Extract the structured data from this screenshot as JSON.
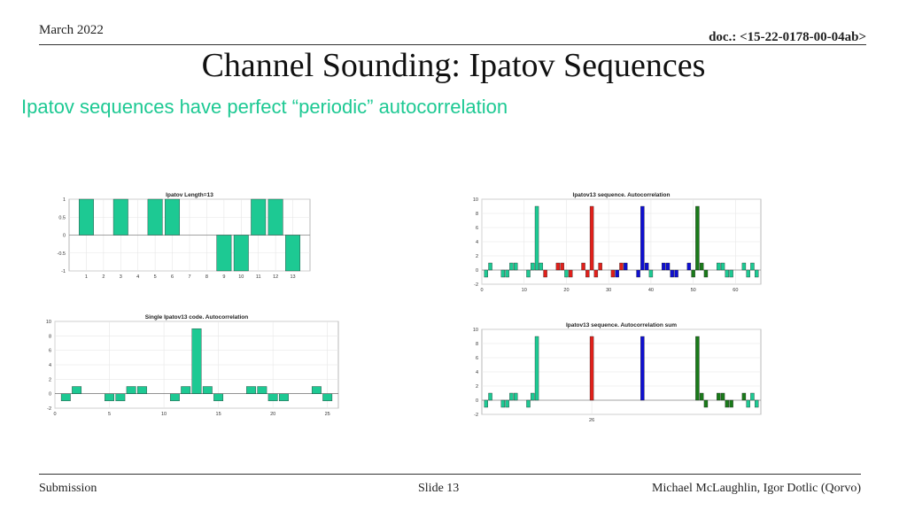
{
  "header": {
    "date": "March 2022",
    "doc": "doc.: <15-22-0178-00-04ab>"
  },
  "slide": {
    "title": "Channel Sounding: Ipatov Sequences",
    "subtitle": "Ipatov sequences have perfect “periodic” autocorrelation"
  },
  "footer": {
    "left": "Submission",
    "center": "Slide 13",
    "right": "Michael McLaughlin, Igor Dotlic (Qorvo)"
  },
  "colors": {
    "teal": "#1dc993",
    "red": "#e0201b",
    "blue": "#1010d0",
    "green": "#1a7a1a",
    "title": "#1dc993"
  },
  "chart_data": [
    {
      "id": "seq",
      "type": "bar",
      "title": "Ipatov Length=13",
      "x": [
        1,
        2,
        3,
        4,
        5,
        6,
        7,
        8,
        9,
        10,
        11,
        12,
        13
      ],
      "values": [
        1,
        0,
        1,
        0,
        1,
        1,
        0,
        0,
        -1,
        -1,
        1,
        1,
        -1
      ],
      "xlim": [
        0,
        14
      ],
      "ylim": [
        -1,
        1
      ],
      "xticks": [
        1,
        2,
        3,
        4,
        5,
        6,
        7,
        8,
        9,
        10,
        11,
        12,
        13
      ],
      "yticks": [
        -1,
        -0.5,
        0,
        0.5,
        1
      ],
      "ytick_labels": [
        "-1",
        "-0.5",
        "0",
        "0.5",
        "1"
      ],
      "grid": true
    },
    {
      "id": "single",
      "type": "bar",
      "title": "Single Ipatov13 code. Autocorrelation",
      "x": [
        1,
        2,
        3,
        4,
        5,
        6,
        7,
        8,
        9,
        10,
        11,
        12,
        13,
        14,
        15,
        16,
        17,
        18,
        19,
        20,
        21,
        22,
        23,
        24,
        25
      ],
      "values": [
        -1,
        1,
        0,
        0,
        -1,
        -1,
        1,
        1,
        0,
        0,
        -1,
        1,
        9,
        1,
        -1,
        0,
        0,
        1,
        1,
        -1,
        -1,
        0,
        0,
        1,
        -1
      ],
      "xlim": [
        0,
        26
      ],
      "ylim": [
        -2,
        10
      ],
      "xticks": [
        0,
        5,
        10,
        15,
        20,
        25
      ],
      "yticks": [
        -2,
        0,
        2,
        4,
        6,
        8,
        10
      ],
      "grid": true
    },
    {
      "id": "acorr",
      "type": "bar",
      "title": "Ipatov13 sequence. Autocorrelation",
      "x": [
        1,
        2,
        3,
        4,
        5,
        6,
        7,
        8,
        9,
        10,
        11,
        12,
        13,
        14,
        15,
        16,
        17,
        18,
        19,
        20,
        21,
        22,
        23,
        24,
        25,
        26,
        27,
        28,
        29,
        30,
        31,
        32,
        33,
        34,
        35,
        36,
        37,
        38,
        39,
        40,
        41,
        42,
        43,
        44,
        45,
        46,
        47,
        48,
        49,
        50,
        51,
        52,
        53,
        54,
        55,
        56,
        57,
        58,
        59,
        60,
        61,
        62,
        63,
        64,
        65
      ],
      "values": [
        -1,
        1,
        0,
        0,
        -1,
        -1,
        1,
        1,
        0,
        0,
        -1,
        1,
        9,
        1,
        -1,
        0,
        0,
        1,
        1,
        -1,
        -1,
        0,
        0,
        1,
        -1,
        9,
        -1,
        1,
        0,
        0,
        -1,
        -1,
        1,
        1,
        0,
        0,
        -1,
        9,
        1,
        -1,
        0,
        0,
        1,
        1,
        -1,
        -1,
        0,
        0,
        1,
        -1,
        9,
        1,
        -1,
        0,
        0,
        1,
        1,
        -1,
        -1,
        0,
        0,
        1,
        -1,
        1,
        -1
      ],
      "colors": [
        "teal",
        "teal",
        "teal",
        "teal",
        "teal",
        "teal",
        "teal",
        "teal",
        "teal",
        "teal",
        "teal",
        "teal",
        "teal",
        "teal",
        "red",
        "teal",
        "teal",
        "red",
        "red",
        "teal",
        "red",
        "teal",
        "teal",
        "red",
        "red",
        "red",
        "red",
        "red",
        "teal",
        "teal",
        "red",
        "blue",
        "red",
        "blue",
        "teal",
        "teal",
        "blue",
        "blue",
        "blue",
        "teal",
        "teal",
        "blue",
        "blue",
        "blue",
        "blue",
        "blue",
        "green",
        "green",
        "blue",
        "green",
        "green",
        "green",
        "green",
        "teal",
        "teal",
        "teal",
        "teal",
        "teal",
        "teal",
        "teal",
        "teal",
        "teal",
        "teal",
        "teal",
        "teal"
      ],
      "xlim": [
        0,
        66
      ],
      "ylim": [
        -2,
        10
      ],
      "xticks": [
        0,
        10,
        20,
        30,
        40,
        50,
        60
      ],
      "yticks": [
        -2,
        0,
        2,
        4,
        6,
        8,
        10
      ],
      "grid": true
    },
    {
      "id": "sum",
      "type": "bar",
      "title": "Ipatov13 sequence. Autocorrelation sum",
      "x": [
        1,
        2,
        3,
        4,
        5,
        6,
        7,
        8,
        9,
        10,
        11,
        12,
        13,
        14,
        15,
        16,
        17,
        18,
        19,
        20,
        21,
        22,
        23,
        24,
        25,
        26,
        27,
        28,
        29,
        30,
        31,
        32,
        33,
        34,
        35,
        36,
        37,
        38,
        39,
        40,
        41,
        42,
        43,
        44,
        45,
        46,
        47,
        48,
        49,
        50,
        51,
        52,
        53,
        54,
        55,
        56,
        57,
        58,
        59,
        60,
        61,
        62,
        63,
        64,
        65
      ],
      "values": [
        -1,
        1,
        0,
        0,
        -1,
        -1,
        1,
        1,
        0,
        0,
        -1,
        1,
        9,
        0,
        0,
        0,
        0,
        0,
        0,
        0,
        0,
        0,
        0,
        0,
        0,
        9,
        0,
        0,
        0,
        0,
        0,
        0,
        0,
        0,
        0,
        0,
        0,
        9,
        0,
        0,
        0,
        0,
        0,
        0,
        0,
        0,
        0,
        0,
        0,
        0,
        9,
        1,
        -1,
        0,
        0,
        1,
        1,
        -1,
        -1,
        0,
        0,
        1,
        -1,
        1,
        -1
      ],
      "colors": [
        "teal",
        "teal",
        "teal",
        "teal",
        "teal",
        "teal",
        "teal",
        "teal",
        "teal",
        "teal",
        "teal",
        "teal",
        "teal",
        "teal",
        "teal",
        "teal",
        "teal",
        "teal",
        "teal",
        "teal",
        "teal",
        "teal",
        "teal",
        "teal",
        "teal",
        "red",
        "teal",
        "teal",
        "teal",
        "teal",
        "teal",
        "teal",
        "teal",
        "teal",
        "teal",
        "teal",
        "teal",
        "blue",
        "teal",
        "teal",
        "teal",
        "teal",
        "teal",
        "teal",
        "teal",
        "teal",
        "teal",
        "teal",
        "teal",
        "teal",
        "green",
        "green",
        "green",
        "green",
        "green",
        "green",
        "green",
        "green",
        "green",
        "green",
        "green",
        "green",
        "teal",
        "teal",
        "teal"
      ],
      "xlim": [
        0,
        66
      ],
      "ylim": [
        -2,
        10
      ],
      "xticks": [
        26
      ],
      "yticks": [
        -2,
        0,
        2,
        4,
        6,
        8,
        10
      ],
      "grid": true
    }
  ]
}
